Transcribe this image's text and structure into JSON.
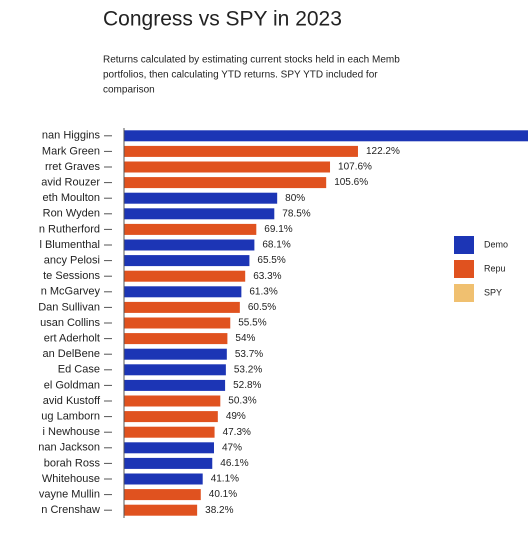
{
  "chart_data": {
    "type": "barh",
    "title": "Congress vs SPY in 2023",
    "subtitle": [
      "Returns calculated by estimating current stocks held in each Memb",
      "portfolios, then calculating YTD returns. SPY YTD included for",
      "comparison"
    ],
    "categories": [
      "nan Higgins",
      "Mark Green",
      "rret Graves",
      "avid Rouzer",
      "eth Moulton",
      "Ron Wyden",
      "n Rutherford",
      "l Blumenthal",
      "ancy Pelosi",
      "te Sessions",
      "n McGarvey",
      "Dan Sullivan",
      "usan Collins",
      "ert Aderholt",
      "an DelBene",
      "Ed Case",
      "el Goldman",
      "avid Kustoff",
      "ug Lamborn",
      "i Newhouse",
      "nan Jackson",
      "borah Ross",
      "Whitehouse",
      "vayne Mullin",
      "n Crenshaw"
    ],
    "values": [
      215,
      122.2,
      107.6,
      105.6,
      80,
      78.5,
      69.1,
      68.1,
      65.5,
      63.3,
      61.3,
      60.5,
      55.5,
      54,
      53.7,
      53.2,
      52.8,
      50.3,
      49,
      47.3,
      47,
      46.1,
      41.1,
      40.1,
      38.2
    ],
    "value_labels": [
      null,
      "122.2%",
      "107.6%",
      "105.6%",
      "80%",
      "78.5%",
      "69.1%",
      "68.1%",
      "65.5%",
      "63.3%",
      "61.3%",
      "60.5%",
      "55.5%",
      "54%",
      "53.7%",
      "53.2%",
      "52.8%",
      "50.3%",
      "49%",
      "47.3%",
      "47%",
      "46.1%",
      "41.1%",
      "40.1%",
      "38.2%"
    ],
    "colors": [
      "#1c35b5",
      "#e0521f",
      "#e0521f",
      "#e0521f",
      "#1c35b5",
      "#1c35b5",
      "#e0521f",
      "#1c35b5",
      "#1c35b5",
      "#e0521f",
      "#1c35b5",
      "#e0521f",
      "#e0521f",
      "#e0521f",
      "#1c35b5",
      "#1c35b5",
      "#1c35b5",
      "#e0521f",
      "#e0521f",
      "#e0521f",
      "#1c35b5",
      "#1c35b5",
      "#1c35b5",
      "#e0521f",
      "#e0521f"
    ],
    "xlim": [
      0,
      211
    ],
    "legend": [
      {
        "name": "Demo",
        "color": "#1c35b5"
      },
      {
        "name": "Repu",
        "color": "#e0521f"
      },
      {
        "name": "SPY",
        "color": "#f0c070"
      }
    ]
  }
}
